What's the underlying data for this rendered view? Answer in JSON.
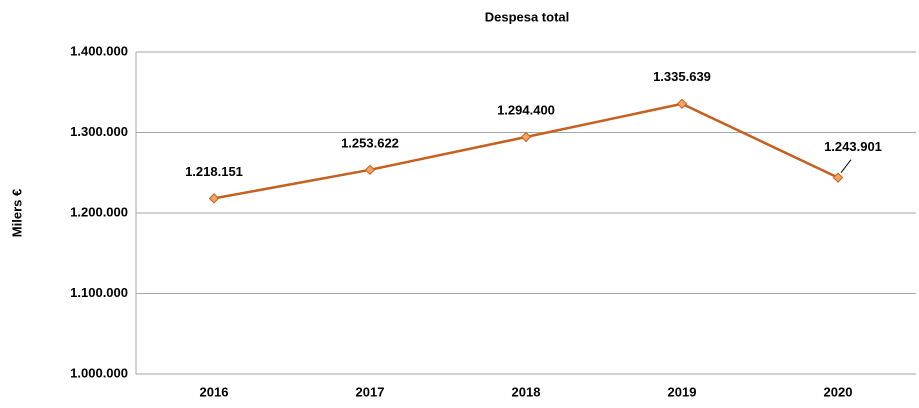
{
  "chart_data": {
    "type": "line",
    "title": "Despesa total",
    "y_label": "Milers €",
    "categories": [
      "2016",
      "2017",
      "2018",
      "2019",
      "2020"
    ],
    "series": [
      {
        "name": "Despesa total",
        "color": "#c5601f",
        "values": [
          1218151,
          1253622,
          1294400,
          1335639,
          1243901
        ],
        "value_labels": [
          "1.218.151",
          "1.253.622",
          "1.294.400",
          "1.335.639",
          "1.243.901"
        ]
      }
    ],
    "ylim": [
      1000000,
      1400000
    ],
    "yticks": [
      {
        "value": 1000000,
        "label": "1.000.000"
      },
      {
        "value": 1100000,
        "label": "1.100.000"
      },
      {
        "value": 1200000,
        "label": "1.200.000"
      },
      {
        "value": 1300000,
        "label": "1.300.000"
      },
      {
        "value": 1400000,
        "label": "1.400.000"
      }
    ],
    "grid": true
  }
}
